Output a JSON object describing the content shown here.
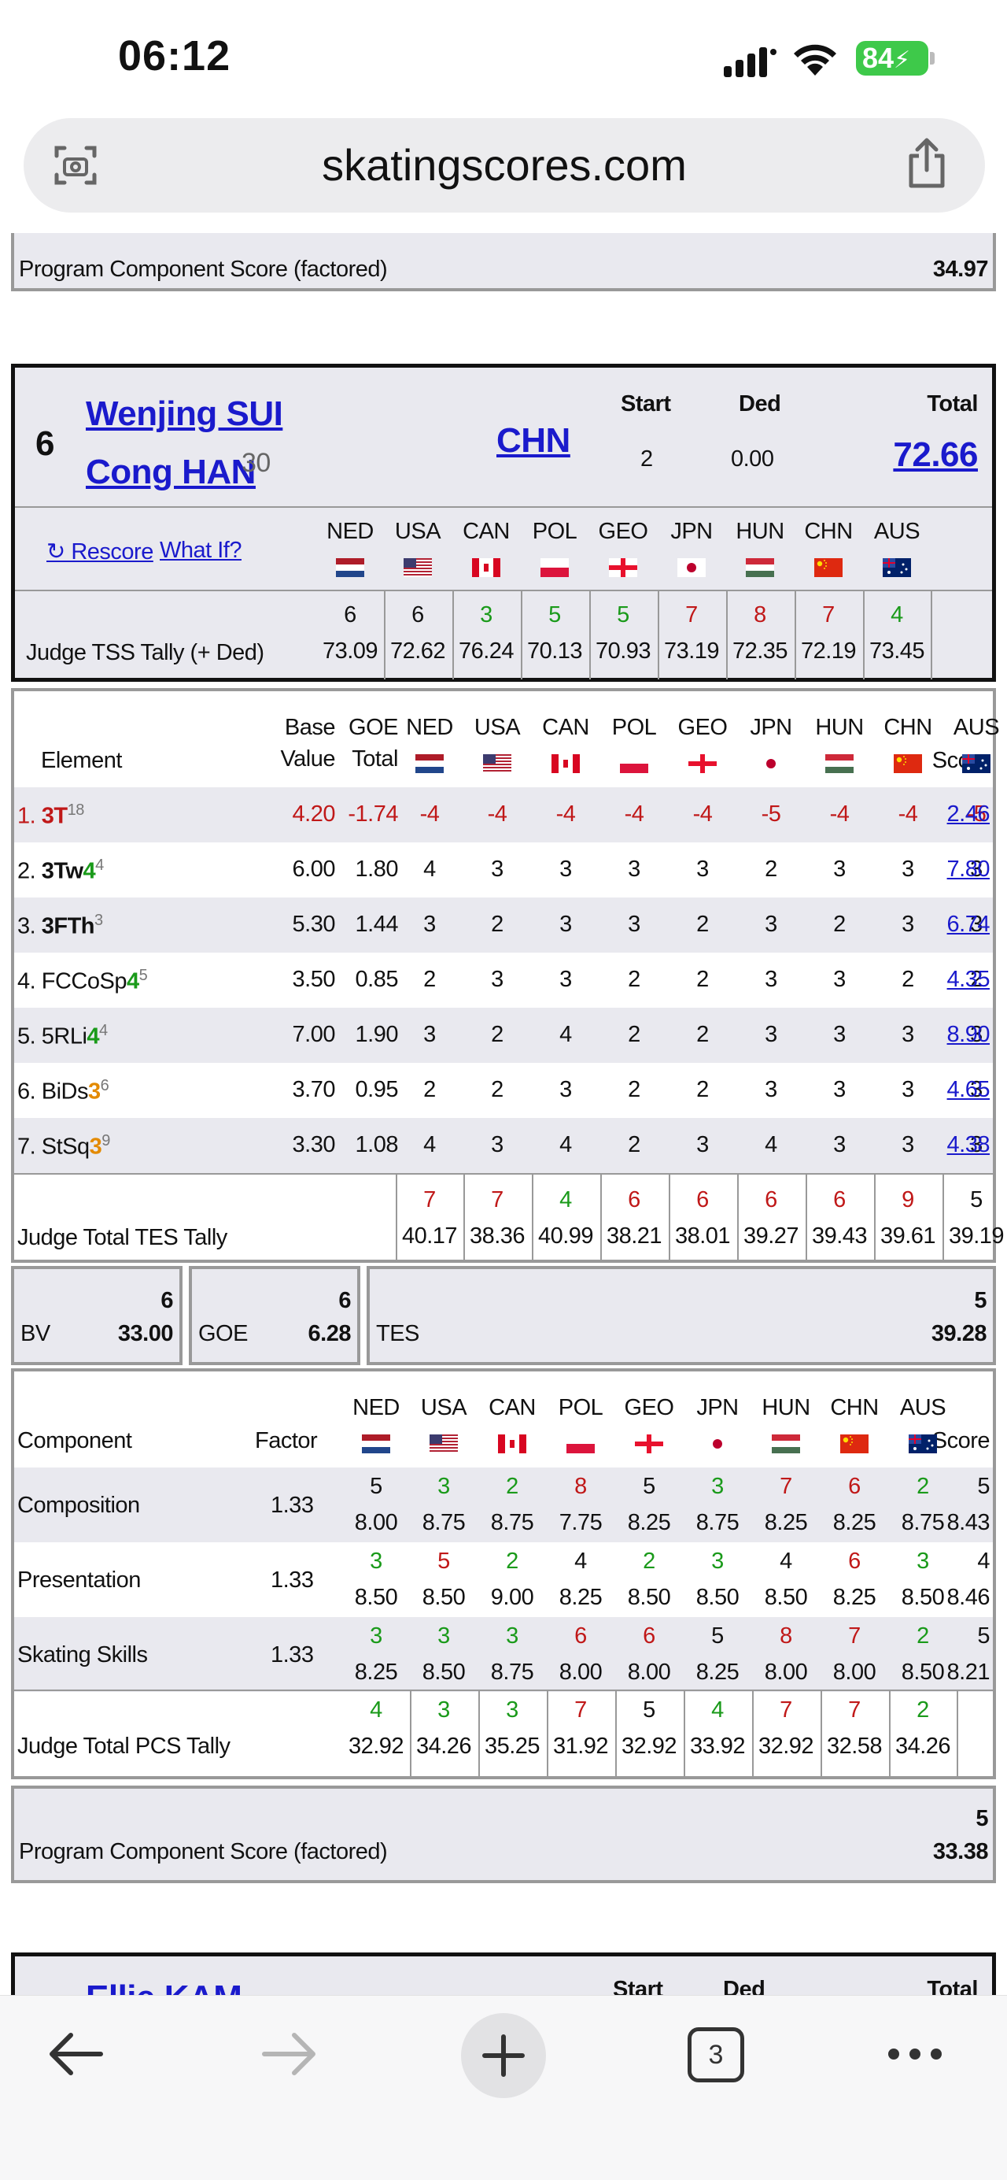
{
  "status": {
    "time": "06:12",
    "battery": "84"
  },
  "browser": {
    "url": "skatingscores.com",
    "tab_count": "3"
  },
  "prev_pcs": {
    "label": "Program Component Score (factored)",
    "value": "34.97"
  },
  "skater": {
    "rank": "6",
    "name1": "Wenjing SUI",
    "name2": "Cong HAN",
    "age": "30",
    "country": "CHN",
    "start_label": "Start",
    "start": "2",
    "ded_label": "Ded",
    "ded": "0.00",
    "total_label": "Total",
    "total": "72.66",
    "rescore": "↻ Rescore",
    "whatif": "What If?"
  },
  "judges": [
    "NED",
    "USA",
    "CAN",
    "POL",
    "GEO",
    "JPN",
    "HUN",
    "CHN",
    "AUS"
  ],
  "flag_colors": {
    "NED": [
      "#ae1c28",
      "#ffffff",
      "#21468b"
    ],
    "USA": [
      "#b22234",
      "#ffffff",
      "#3c3b6e"
    ],
    "CAN": [
      "#d80621",
      "#ffffff",
      "#d80621"
    ],
    "POL": [
      "#ffffff",
      "#dc143c"
    ],
    "GEO": [
      "#ffffff",
      "#e8112d"
    ],
    "JPN": [
      "#ffffff",
      "#bc002d"
    ],
    "HUN": [
      "#ce2939",
      "#ffffff",
      "#477050"
    ],
    "CHN": [
      "#de2910",
      "#ffde00"
    ],
    "AUS": [
      "#012169",
      "#ffffff",
      "#e4002b"
    ]
  },
  "tss_tally": {
    "label": "Judge TSS Tally (+ Ded)",
    "ranks": [
      {
        "v": "6",
        "c": ""
      },
      {
        "v": "6",
        "c": ""
      },
      {
        "v": "3",
        "c": "green"
      },
      {
        "v": "5",
        "c": "green"
      },
      {
        "v": "5",
        "c": "green"
      },
      {
        "v": "7",
        "c": "red"
      },
      {
        "v": "8",
        "c": "red"
      },
      {
        "v": "7",
        "c": "red"
      },
      {
        "v": "4",
        "c": "green"
      }
    ],
    "scores": [
      "73.09",
      "72.62",
      "76.24",
      "70.13",
      "70.93",
      "73.19",
      "72.35",
      "72.19",
      "73.45"
    ]
  },
  "elements": {
    "headers": {
      "element": "Element",
      "base1": "Base",
      "base2": "Value",
      "goe1": "GOE",
      "goe2": "Total",
      "score": "Score"
    },
    "rows": [
      {
        "num": "1.",
        "code": "3T",
        "code_suffix": "",
        "sup": "18",
        "bv": "4.20",
        "goe": "-1.74",
        "marks": [
          "-4",
          "-4",
          "-4",
          "-4",
          "-4",
          "-5",
          "-4",
          "-4",
          "-5"
        ],
        "score": "2.46",
        "red": true
      },
      {
        "num": "2.",
        "code": "3Tw",
        "code_suffix": "4",
        "sfx": "green",
        "sup": "4",
        "bv": "6.00",
        "goe": "1.80",
        "marks": [
          "4",
          "3",
          "3",
          "3",
          "3",
          "2",
          "3",
          "3",
          "3"
        ],
        "score": "7.80",
        "bold": true
      },
      {
        "num": "3.",
        "code": "3FTh",
        "code_suffix": "",
        "sup": "3",
        "bv": "5.30",
        "goe": "1.44",
        "marks": [
          "3",
          "2",
          "3",
          "3",
          "2",
          "3",
          "2",
          "3",
          "3"
        ],
        "score": "6.74",
        "bold": true
      },
      {
        "num": "4.",
        "code": "FCCoSp",
        "code_suffix": "4",
        "sfx": "green",
        "sup": "5",
        "bv": "3.50",
        "goe": "0.85",
        "marks": [
          "2",
          "3",
          "3",
          "2",
          "2",
          "3",
          "3",
          "2",
          "2"
        ],
        "score": "4.35"
      },
      {
        "num": "5.",
        "code": "5RLi",
        "code_suffix": "4",
        "sfx": "green",
        "sup": "4",
        "bv": "7.00",
        "goe": "1.90",
        "marks": [
          "3",
          "2",
          "4",
          "2",
          "2",
          "3",
          "3",
          "3",
          "3"
        ],
        "score": "8.90"
      },
      {
        "num": "6.",
        "code": "BiDs",
        "code_suffix": "3",
        "sfx": "orange",
        "sup": "6",
        "bv": "3.70",
        "goe": "0.95",
        "marks": [
          "2",
          "2",
          "3",
          "2",
          "2",
          "3",
          "3",
          "3",
          "3"
        ],
        "score": "4.65"
      },
      {
        "num": "7.",
        "code": "StSq",
        "code_suffix": "3",
        "sfx": "orange",
        "sup": "9",
        "bv": "3.30",
        "goe": "1.08",
        "marks": [
          "4",
          "3",
          "4",
          "2",
          "3",
          "4",
          "3",
          "3",
          "3"
        ],
        "score": "4.38"
      }
    ],
    "tally_label": "Judge Total TES Tally",
    "tally_ranks": [
      {
        "v": "7",
        "c": "red"
      },
      {
        "v": "7",
        "c": "red"
      },
      {
        "v": "4",
        "c": "green"
      },
      {
        "v": "6",
        "c": "red"
      },
      {
        "v": "6",
        "c": "red"
      },
      {
        "v": "6",
        "c": "red"
      },
      {
        "v": "6",
        "c": "red"
      },
      {
        "v": "9",
        "c": "red"
      },
      {
        "v": "5",
        "c": ""
      }
    ],
    "tally_scores": [
      "40.17",
      "38.36",
      "40.99",
      "38.21",
      "38.01",
      "39.27",
      "39.43",
      "39.61",
      "39.19"
    ]
  },
  "summary": {
    "bv_label": "BV",
    "bv_rank": "6",
    "bv": "33.00",
    "goe_label": "GOE",
    "goe_rank": "6",
    "goe": "6.28",
    "tes_label": "TES",
    "tes_rank": "5",
    "tes": "39.28"
  },
  "components": {
    "headers": {
      "component": "Component",
      "factor": "Factor",
      "score": "Score"
    },
    "rows": [
      {
        "name": "Composition",
        "factor": "1.33",
        "ranks": [
          {
            "v": "5",
            "c": ""
          },
          {
            "v": "3",
            "c": "green"
          },
          {
            "v": "2",
            "c": "green"
          },
          {
            "v": "8",
            "c": "red"
          },
          {
            "v": "5",
            "c": ""
          },
          {
            "v": "3",
            "c": "green"
          },
          {
            "v": "7",
            "c": "red"
          },
          {
            "v": "6",
            "c": "red"
          },
          {
            "v": "2",
            "c": "green"
          }
        ],
        "marks": [
          "8.00",
          "8.75",
          "8.75",
          "7.75",
          "8.25",
          "8.75",
          "8.25",
          "8.25",
          "8.75"
        ],
        "rank": "5",
        "score": "8.43"
      },
      {
        "name": "Presentation",
        "factor": "1.33",
        "ranks": [
          {
            "v": "3",
            "c": "green"
          },
          {
            "v": "5",
            "c": "red"
          },
          {
            "v": "2",
            "c": "green"
          },
          {
            "v": "4",
            "c": ""
          },
          {
            "v": "2",
            "c": "green"
          },
          {
            "v": "3",
            "c": "green"
          },
          {
            "v": "4",
            "c": ""
          },
          {
            "v": "6",
            "c": "red"
          },
          {
            "v": "3",
            "c": "green"
          }
        ],
        "marks": [
          "8.50",
          "8.50",
          "9.00",
          "8.25",
          "8.50",
          "8.50",
          "8.50",
          "8.25",
          "8.50"
        ],
        "rank": "4",
        "score": "8.46"
      },
      {
        "name": "Skating Skills",
        "factor": "1.33",
        "ranks": [
          {
            "v": "3",
            "c": "green"
          },
          {
            "v": "3",
            "c": "green"
          },
          {
            "v": "3",
            "c": "green"
          },
          {
            "v": "6",
            "c": "red"
          },
          {
            "v": "6",
            "c": "red"
          },
          {
            "v": "5",
            "c": ""
          },
          {
            "v": "8",
            "c": "red"
          },
          {
            "v": "7",
            "c": "red"
          },
          {
            "v": "2",
            "c": "green"
          }
        ],
        "marks": [
          "8.25",
          "8.50",
          "8.75",
          "8.00",
          "8.00",
          "8.25",
          "8.00",
          "8.00",
          "8.50"
        ],
        "rank": "5",
        "score": "8.21"
      }
    ],
    "tally_label": "Judge Total PCS Tally",
    "tally_ranks": [
      {
        "v": "4",
        "c": "green"
      },
      {
        "v": "3",
        "c": "green"
      },
      {
        "v": "3",
        "c": "green"
      },
      {
        "v": "7",
        "c": "red"
      },
      {
        "v": "5",
        "c": ""
      },
      {
        "v": "4",
        "c": "green"
      },
      {
        "v": "7",
        "c": "red"
      },
      {
        "v": "7",
        "c": "red"
      },
      {
        "v": "2",
        "c": "green"
      }
    ],
    "tally_scores": [
      "32.92",
      "34.26",
      "35.25",
      "31.92",
      "32.92",
      "33.92",
      "32.92",
      "32.58",
      "34.26"
    ]
  },
  "pcs_total": {
    "label": "Program Component Score (factored)",
    "rank": "5",
    "value": "33.38"
  },
  "next_skater": {
    "name": "Ellie KAM",
    "start_label": "Start",
    "ded_label": "Ded",
    "total_label": "Total"
  }
}
